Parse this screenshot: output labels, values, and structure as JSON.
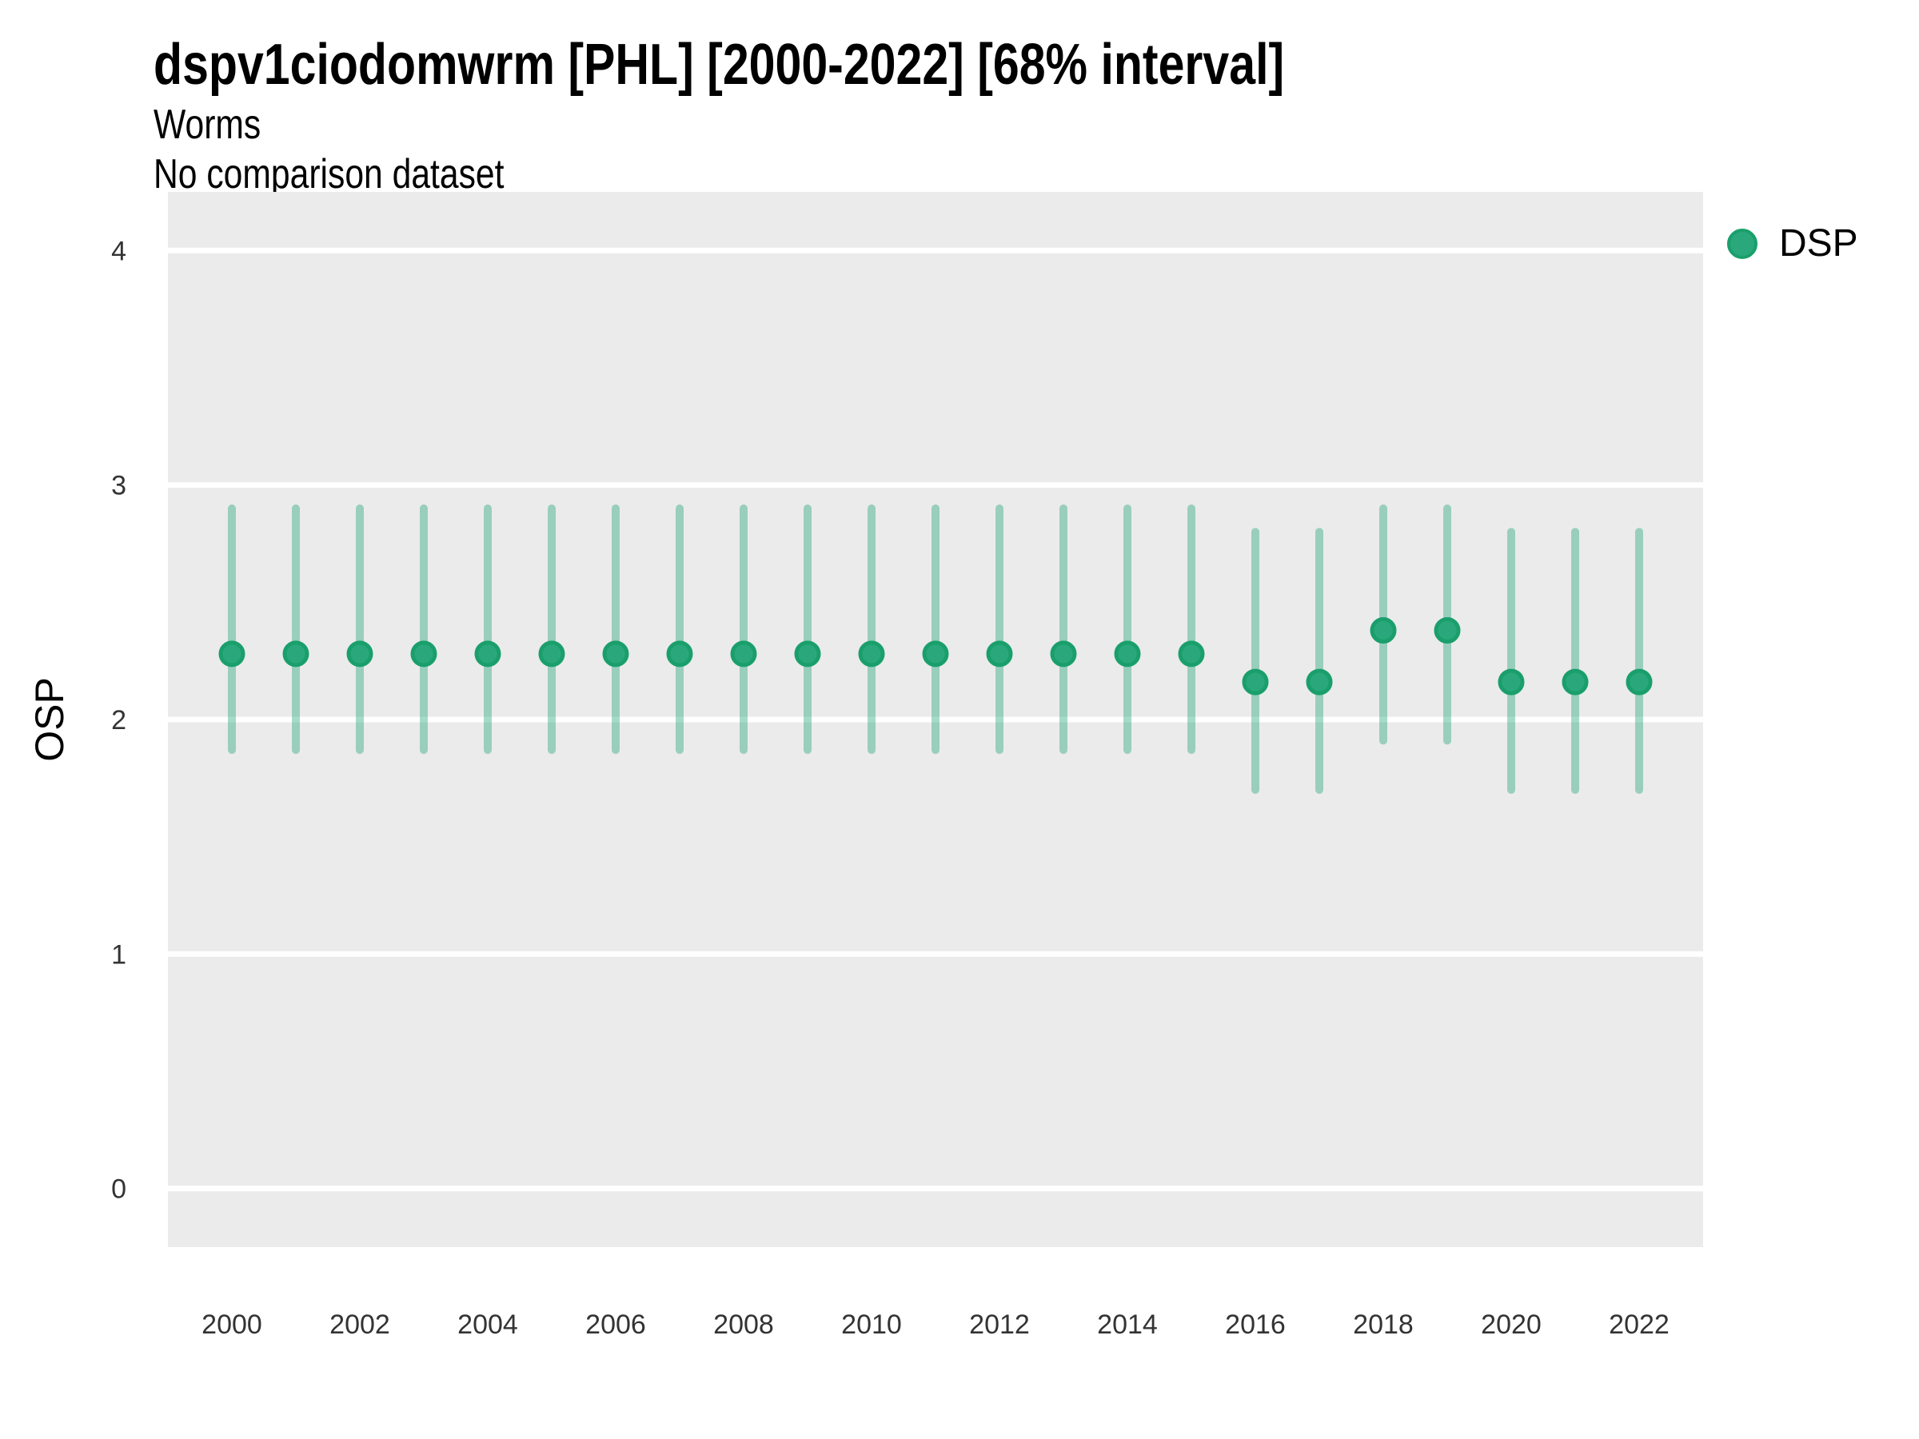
{
  "figure": {
    "title": "dspv1ciodomwrm [PHL] [2000-2022] [68% interval]",
    "subtitle": "Worms",
    "note": "No comparison dataset"
  },
  "chart_data": {
    "type": "scatter",
    "title": "dspv1ciodomwrm [PHL] [2000-2022] [68% interval]",
    "subtitle": "Worms",
    "note": "No comparison dataset",
    "xlabel": "",
    "ylabel": "OSP",
    "interval": "68%",
    "xlim": [
      1999,
      2023
    ],
    "ylim": [
      -0.25,
      4.25
    ],
    "yticks": [
      0,
      1,
      2,
      3,
      4
    ],
    "xticks": [
      2000,
      2002,
      2004,
      2006,
      2008,
      2010,
      2012,
      2014,
      2016,
      2018,
      2020,
      2022
    ],
    "grid": "horizontal-major-only",
    "legend": {
      "label": "DSP",
      "position": "right-top"
    },
    "colors": {
      "point_fill": "#2BA87B",
      "point_stroke": "#1A9F6C",
      "interval_bar": "rgba(43,168,123,0.42)",
      "panel_background": "#EBEBEB",
      "gridline": "#FFFFFF",
      "tick_text": "#333333"
    },
    "series": [
      {
        "name": "DSP",
        "years": [
          2000,
          2001,
          2002,
          2003,
          2004,
          2005,
          2006,
          2007,
          2008,
          2009,
          2010,
          2011,
          2012,
          2013,
          2014,
          2015,
          2016,
          2017,
          2018,
          2019,
          2020,
          2021,
          2022
        ],
        "mid": [
          2.28,
          2.28,
          2.28,
          2.28,
          2.28,
          2.28,
          2.28,
          2.28,
          2.28,
          2.28,
          2.28,
          2.28,
          2.28,
          2.28,
          2.28,
          2.28,
          2.16,
          2.16,
          2.38,
          2.38,
          2.16,
          2.16,
          2.16
        ],
        "lo": [
          1.87,
          1.87,
          1.87,
          1.87,
          1.87,
          1.87,
          1.87,
          1.87,
          1.87,
          1.87,
          1.87,
          1.87,
          1.87,
          1.87,
          1.87,
          1.87,
          1.7,
          1.7,
          1.91,
          1.91,
          1.7,
          1.7,
          1.7
        ],
        "hi": [
          2.9,
          2.9,
          2.9,
          2.9,
          2.9,
          2.9,
          2.9,
          2.9,
          2.9,
          2.9,
          2.9,
          2.9,
          2.9,
          2.9,
          2.9,
          2.9,
          2.8,
          2.8,
          2.9,
          2.9,
          2.8,
          2.8,
          2.8
        ]
      }
    ]
  }
}
